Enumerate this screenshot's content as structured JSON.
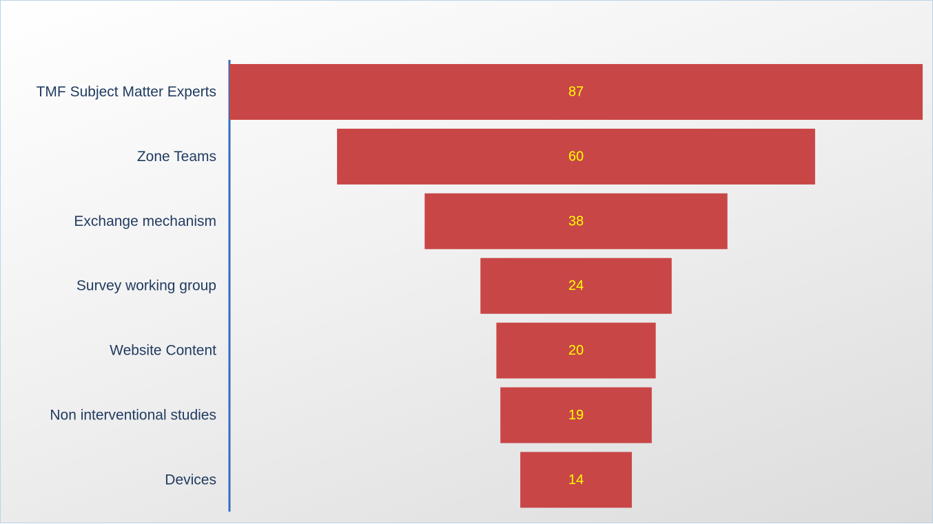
{
  "chart_data": {
    "type": "bar",
    "orientation": "horizontal",
    "style": "funnel",
    "title": "",
    "xlabel": "",
    "ylabel": "",
    "categories": [
      "TMF Subject Matter Experts",
      "Zone Teams",
      "Exchange mechanism",
      "Survey working group",
      "Website Content",
      "Non interventional studies",
      "Devices"
    ],
    "values": [
      87,
      60,
      38,
      24,
      20,
      19,
      14
    ],
    "data_labels": [
      "87",
      "60",
      "38",
      "24",
      "20",
      "19",
      "14"
    ],
    "xlim": [
      0,
      87
    ],
    "grid": false,
    "legend": "none"
  },
  "colors": {
    "bar": "#c94646",
    "value_label": "#ffff00",
    "category_label": "#1f3a5f",
    "axis": "#2e6fbf"
  }
}
